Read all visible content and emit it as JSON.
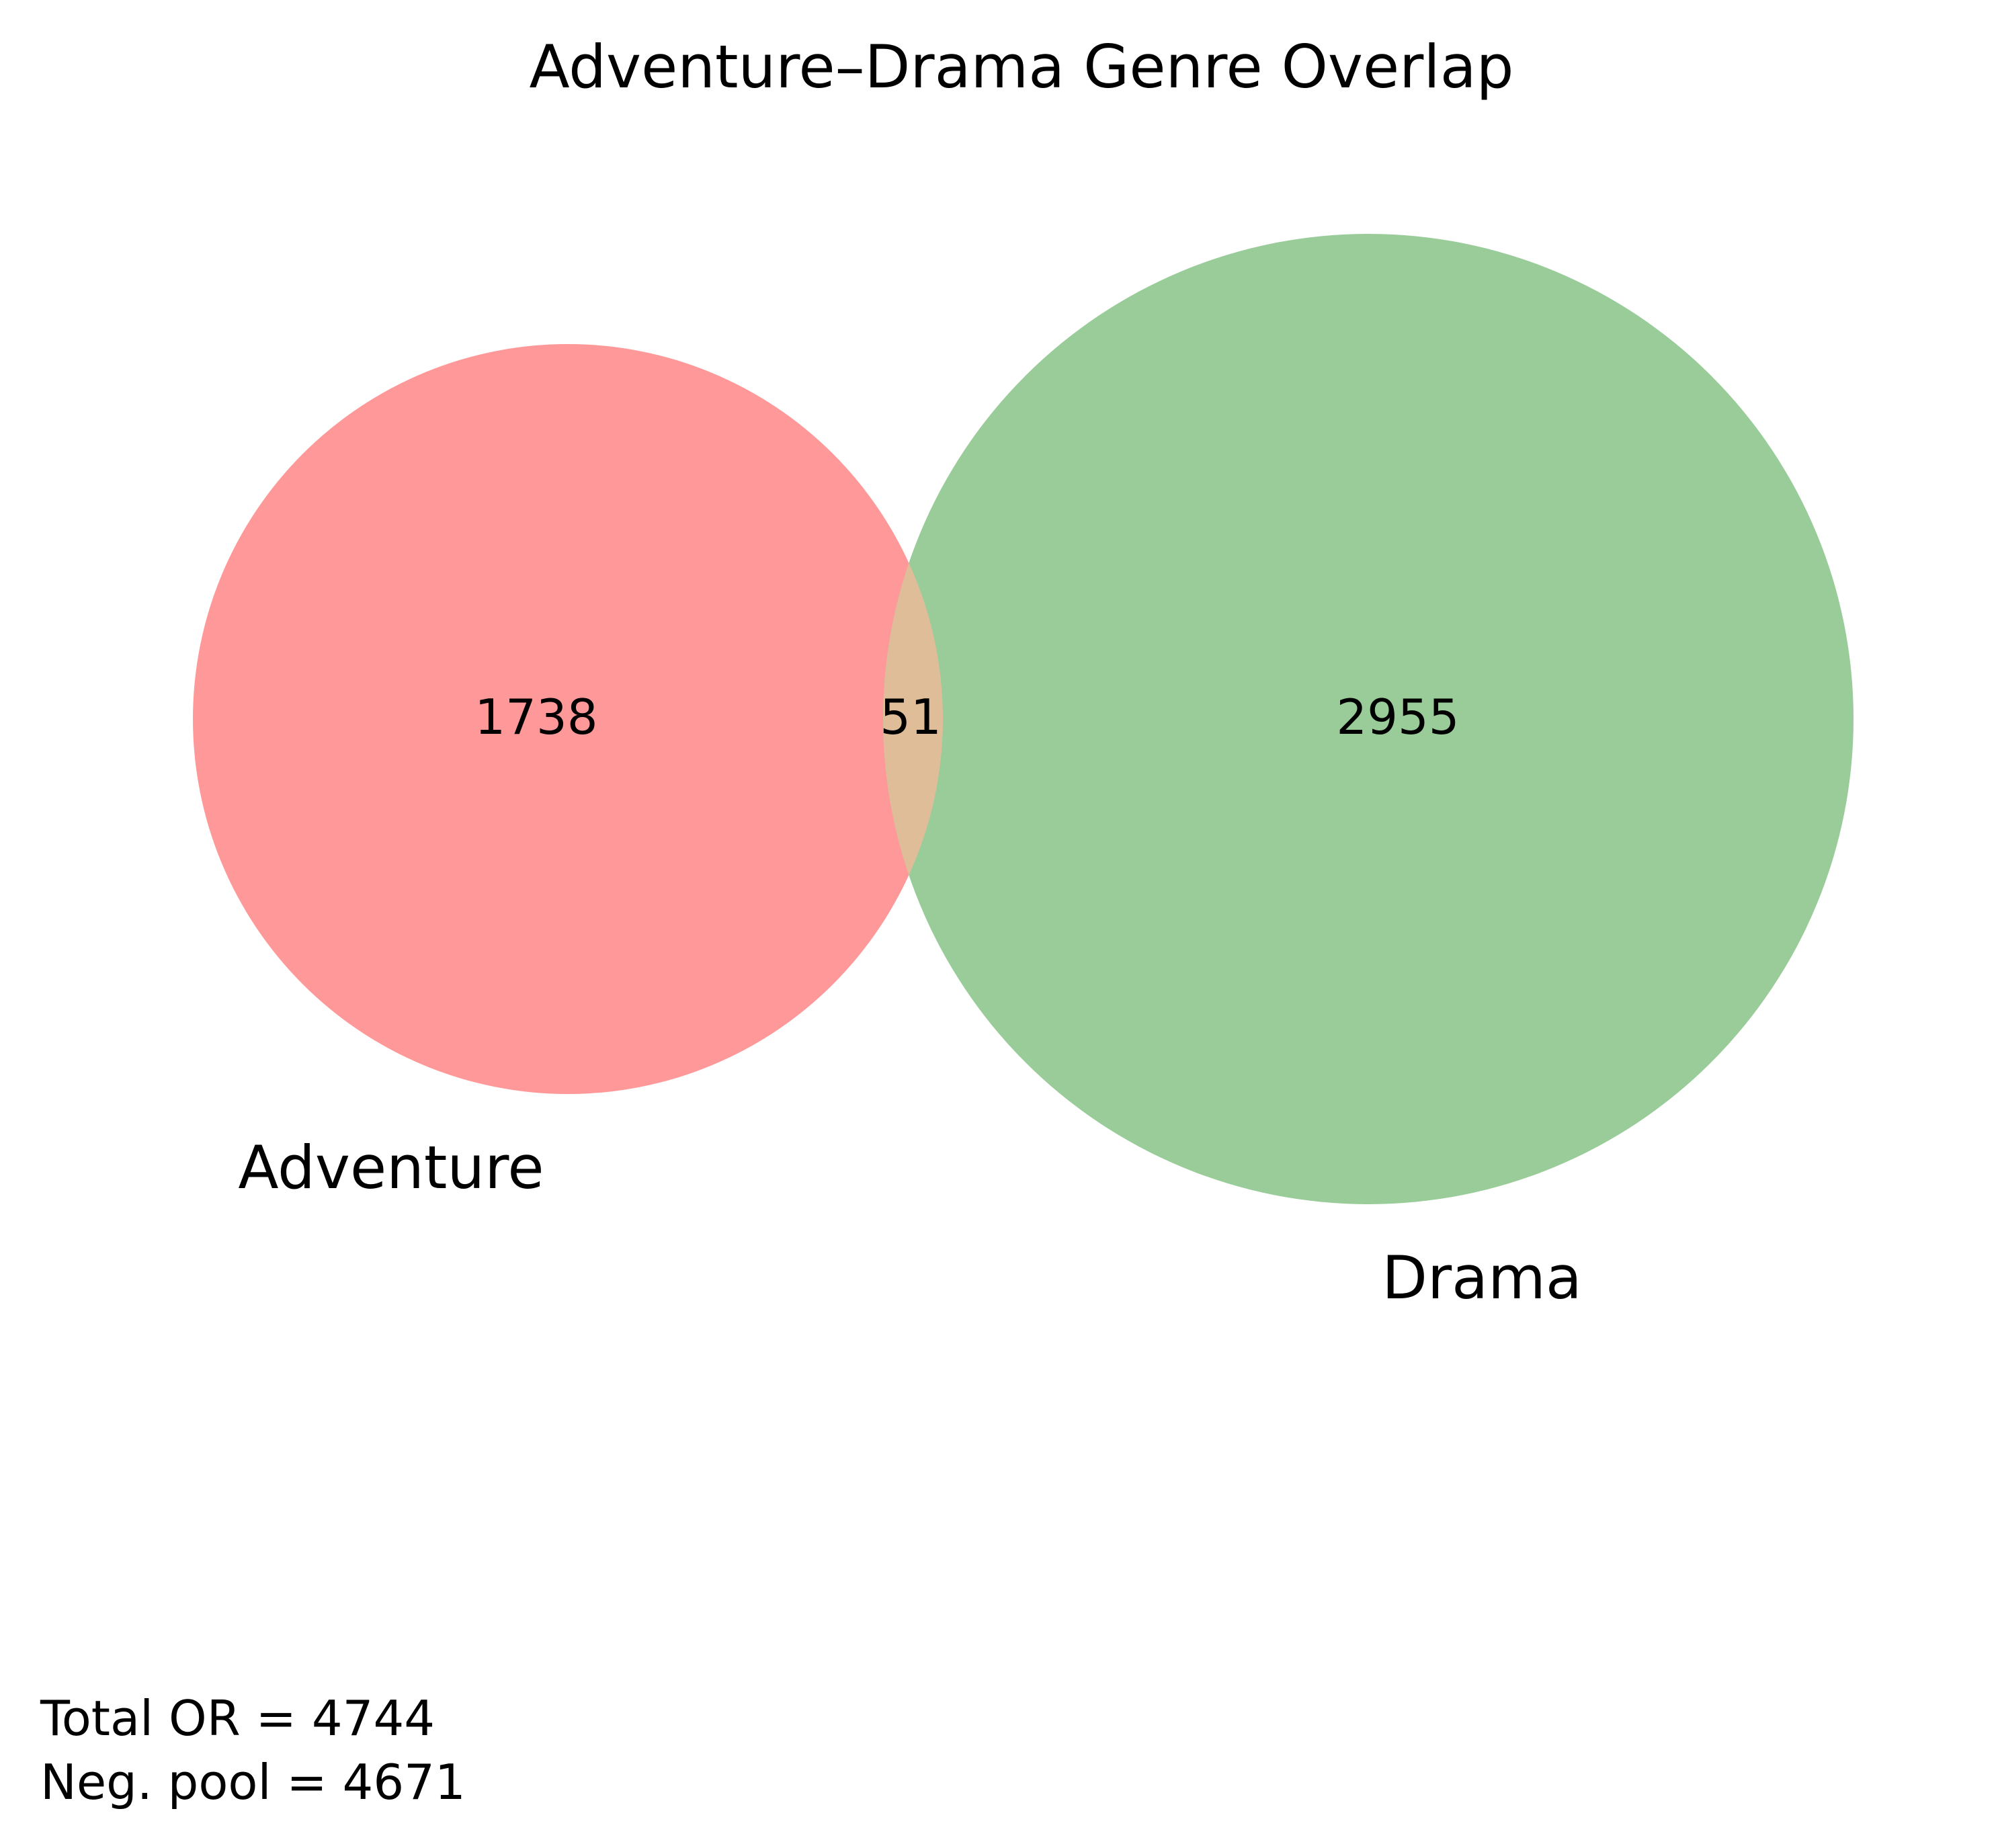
{
  "title": "Adventure–Drama Genre Overlap",
  "sets": {
    "left": {
      "name": "Adventure",
      "only_count": "1738",
      "color": "#ff9999"
    },
    "right": {
      "name": "Drama",
      "only_count": "2955",
      "color": "#99cc99"
    },
    "intersection": {
      "count": "51",
      "color": "#dfbd99"
    }
  },
  "footer": {
    "line1": "Total OR = 4744",
    "line2": "Neg. pool = 4671"
  }
}
